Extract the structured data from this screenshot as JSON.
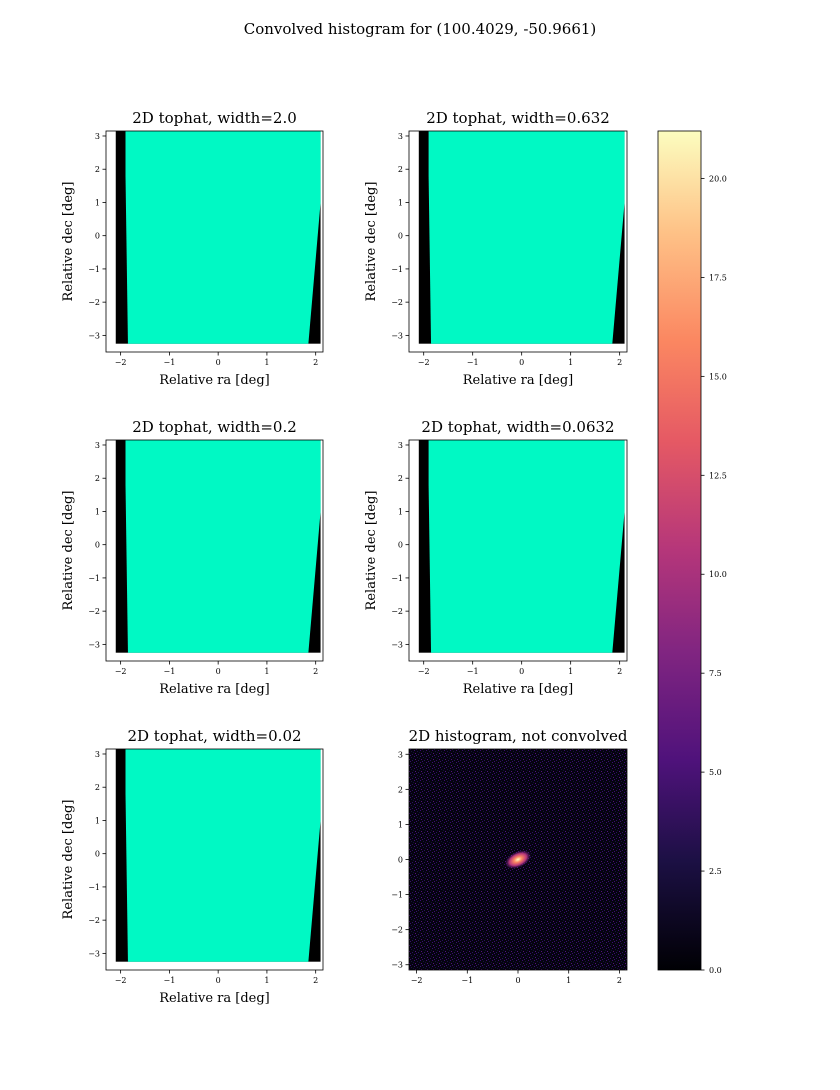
{
  "suptitle": "Convolved histogram for (100.4029, -50.9661)",
  "colors": {
    "fill": "#00f9c4",
    "black": "#000000",
    "white": "#ffffff"
  },
  "chart_data": [
    {
      "type": "heatmap",
      "title": "2D tophat, width=2.0",
      "xlabel": "Relative ra [deg]",
      "ylabel": "Relative dec [deg]",
      "xlim": [
        -2.3,
        2.15
      ],
      "ylim": [
        -3.5,
        3.15
      ],
      "xticks": [
        -2,
        -1,
        0,
        1,
        2
      ],
      "yticks": [
        -3,
        -2,
        -1,
        0,
        1,
        2,
        3
      ],
      "xtick_labels": [
        "−2",
        "−1",
        "0",
        "1",
        "2"
      ],
      "ytick_labels": [
        "−3",
        "−2",
        "−1",
        "0",
        "1",
        "2",
        "3"
      ],
      "footprint": {
        "xmin": -2.1,
        "xmax": 2.1,
        "ymin": -3.25,
        "ymax": 3.15,
        "left_edge_at_bottom": -1.85,
        "left_edge_start_y": 1.8,
        "right_edge_at_bottom": 1.85,
        "right_edge_start_y": 1.0
      },
      "fill_color": "#00f9c4"
    },
    {
      "type": "heatmap",
      "title": "2D tophat, width=0.632",
      "xlabel": "Relative ra [deg]",
      "ylabel": "Relative dec [deg]",
      "xlim": [
        -2.3,
        2.15
      ],
      "ylim": [
        -3.5,
        3.15
      ],
      "xticks": [
        -2,
        -1,
        0,
        1,
        2
      ],
      "yticks": [
        -3,
        -2,
        -1,
        0,
        1,
        2,
        3
      ],
      "xtick_labels": [
        "−2",
        "−1",
        "0",
        "1",
        "2"
      ],
      "ytick_labels": [
        "−3",
        "−2",
        "−1",
        "0",
        "1",
        "2",
        "3"
      ],
      "footprint": {
        "xmin": -2.1,
        "xmax": 2.1,
        "ymin": -3.25,
        "ymax": 3.15,
        "left_edge_at_bottom": -1.85,
        "left_edge_start_y": 1.8,
        "right_edge_at_bottom": 1.85,
        "right_edge_start_y": 1.0
      },
      "fill_color": "#00f9c4"
    },
    {
      "type": "heatmap",
      "title": "2D tophat, width=0.2",
      "xlabel": "Relative ra [deg]",
      "ylabel": "Relative dec [deg]",
      "xlim": [
        -2.3,
        2.15
      ],
      "ylim": [
        -3.5,
        3.15
      ],
      "xticks": [
        -2,
        -1,
        0,
        1,
        2
      ],
      "yticks": [
        -3,
        -2,
        -1,
        0,
        1,
        2,
        3
      ],
      "xtick_labels": [
        "−2",
        "−1",
        "0",
        "1",
        "2"
      ],
      "ytick_labels": [
        "−3",
        "−2",
        "−1",
        "0",
        "1",
        "2",
        "3"
      ],
      "footprint": {
        "xmin": -2.1,
        "xmax": 2.1,
        "ymin": -3.25,
        "ymax": 3.15,
        "left_edge_at_bottom": -1.85,
        "left_edge_start_y": 1.8,
        "right_edge_at_bottom": 1.85,
        "right_edge_start_y": 1.0
      },
      "fill_color": "#00f9c4"
    },
    {
      "type": "heatmap",
      "title": "2D tophat, width=0.0632",
      "xlabel": "Relative ra [deg]",
      "ylabel": "Relative dec [deg]",
      "xlim": [
        -2.3,
        2.15
      ],
      "ylim": [
        -3.5,
        3.15
      ],
      "xticks": [
        -2,
        -1,
        0,
        1,
        2
      ],
      "yticks": [
        -3,
        -2,
        -1,
        0,
        1,
        2,
        3
      ],
      "xtick_labels": [
        "−2",
        "−1",
        "0",
        "1",
        "2"
      ],
      "ytick_labels": [
        "−3",
        "−2",
        "−1",
        "0",
        "1",
        "2",
        "3"
      ],
      "footprint": {
        "xmin": -2.1,
        "xmax": 2.1,
        "ymin": -3.25,
        "ymax": 3.15,
        "left_edge_at_bottom": -1.85,
        "left_edge_start_y": 1.8,
        "right_edge_at_bottom": 1.85,
        "right_edge_start_y": 1.0
      },
      "fill_color": "#00f9c4"
    },
    {
      "type": "heatmap",
      "title": "2D tophat, width=0.02",
      "xlabel": "Relative ra [deg]",
      "ylabel": "Relative dec [deg]",
      "xlim": [
        -2.3,
        2.15
      ],
      "ylim": [
        -3.5,
        3.15
      ],
      "xticks": [
        -2,
        -1,
        0,
        1,
        2
      ],
      "yticks": [
        -3,
        -2,
        -1,
        0,
        1,
        2,
        3
      ],
      "xtick_labels": [
        "−2",
        "−1",
        "0",
        "1",
        "2"
      ],
      "ytick_labels": [
        "−3",
        "−2",
        "−1",
        "0",
        "1",
        "2",
        "3"
      ],
      "footprint": {
        "xmin": -2.1,
        "xmax": 2.1,
        "ymin": -3.25,
        "ymax": 3.15,
        "left_edge_at_bottom": -1.85,
        "left_edge_start_y": 1.8,
        "right_edge_at_bottom": 1.85,
        "right_edge_start_y": 1.0
      },
      "fill_color": "#00f9c4"
    },
    {
      "type": "heatmap",
      "title": "2D histogram, not convolved",
      "xlabel": "",
      "ylabel": "",
      "xlim": [
        -2.15,
        2.15
      ],
      "ylim": [
        -3.15,
        3.15
      ],
      "xticks": [
        -2,
        -1,
        0,
        1,
        2
      ],
      "yticks": [
        -3,
        -2,
        -1,
        0,
        1,
        2,
        3
      ],
      "xtick_labels": [
        "−2",
        "−1",
        "0",
        "1",
        "2"
      ],
      "ytick_labels": [
        "−3",
        "−2",
        "−1",
        "0",
        "1",
        "2",
        "3"
      ],
      "colormap": "magma",
      "hotspot": {
        "x": 0.0,
        "y": 0.0,
        "peak": 21
      }
    },
    {
      "type": "colorbar",
      "colormap": "magma",
      "range": [
        0,
        21.2
      ],
      "ticks": [
        0,
        2.5,
        5,
        7.5,
        10,
        12.5,
        15,
        17.5,
        20
      ],
      "tick_labels": [
        "0.0",
        "2.5",
        "5.0",
        "7.5",
        "10.0",
        "12.5",
        "15.0",
        "17.5",
        "20.0"
      ]
    }
  ]
}
